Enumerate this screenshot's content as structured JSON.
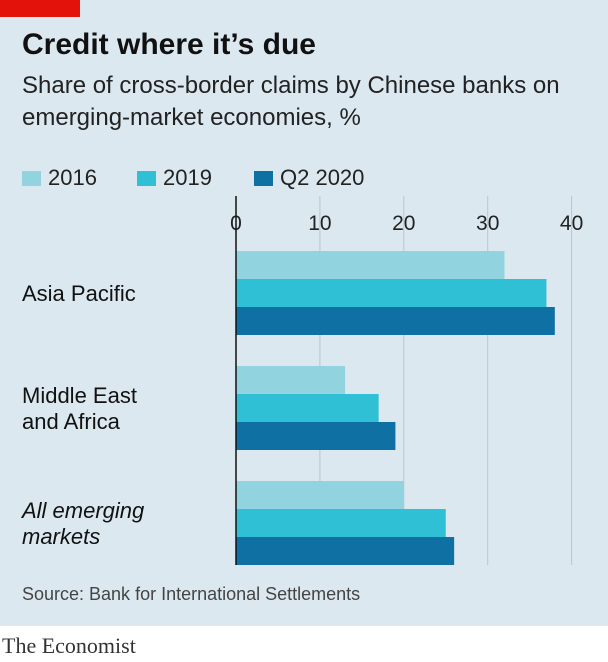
{
  "title": "Credit where it’s due",
  "subtitle": "Share of cross-border claims by Chinese banks on emerging-market economies, %",
  "source": "Source: Bank for International Settlements",
  "brand": "The Economist",
  "colors": {
    "background": "#dce8f0",
    "accent": "#e3120b",
    "series_2016": "#92d3e0",
    "series_2019": "#2fc0d6",
    "series_q2_2020": "#0f70a3",
    "gridline": "#b6c6d1"
  },
  "legend": [
    {
      "label": "2016",
      "color": "#92d3e0"
    },
    {
      "label": "2019",
      "color": "#2fc0d6"
    },
    {
      "label": "Q2 2020",
      "color": "#0f70a3"
    }
  ],
  "chart_data": {
    "type": "bar",
    "orientation": "horizontal",
    "categories": [
      "Asia Pacific",
      "Middle East and Africa",
      "All emerging markets"
    ],
    "category_lines": [
      [
        "Asia Pacific"
      ],
      [
        "Middle East",
        "and Africa"
      ],
      [
        "All emerging",
        "markets"
      ]
    ],
    "category_italic": [
      false,
      false,
      true
    ],
    "series": [
      {
        "name": "2016",
        "values": [
          32,
          13,
          20
        ]
      },
      {
        "name": "2019",
        "values": [
          37,
          17,
          25
        ]
      },
      {
        "name": "Q2 2020",
        "values": [
          38,
          19,
          26
        ]
      }
    ],
    "x_ticks": [
      0,
      10,
      20,
      30,
      40
    ],
    "xlim": [
      0,
      40
    ],
    "grid": true,
    "legend_position": "top-left"
  }
}
